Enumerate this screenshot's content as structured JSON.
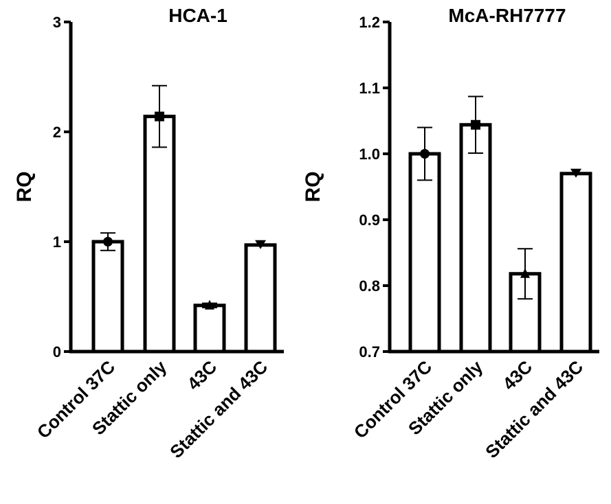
{
  "chart_data": [
    {
      "type": "bar",
      "title": "HCA-1",
      "ylabel": "RQ",
      "xlabel": "",
      "categories": [
        "Control 37C",
        "Stattic only",
        "43C",
        "Stattic and 43C"
      ],
      "values": [
        1.0,
        2.14,
        0.42,
        0.97
      ],
      "errors": [
        0.08,
        0.28,
        0.02,
        0.0
      ],
      "markers": [
        "circle",
        "square",
        "triangle-up",
        "triangle-down"
      ],
      "ylim": [
        0,
        3
      ],
      "yticks": [
        "0",
        "1",
        "2",
        "3"
      ]
    },
    {
      "type": "bar",
      "title": "McA-RH7777",
      "ylabel": "RQ",
      "xlabel": "",
      "categories": [
        "Control 37C",
        "Stattic only",
        "43C",
        "Stattic and 43C"
      ],
      "values": [
        1.0,
        1.044,
        0.818,
        0.97
      ],
      "errors": [
        0.04,
        0.043,
        0.038,
        0.0
      ],
      "markers": [
        "circle",
        "square",
        "triangle-up",
        "triangle-down"
      ],
      "ylim": [
        0.7,
        1.2
      ],
      "yticks": [
        "0.7",
        "0.8",
        "0.9",
        "1.0",
        "1.1",
        "1.2"
      ]
    }
  ]
}
